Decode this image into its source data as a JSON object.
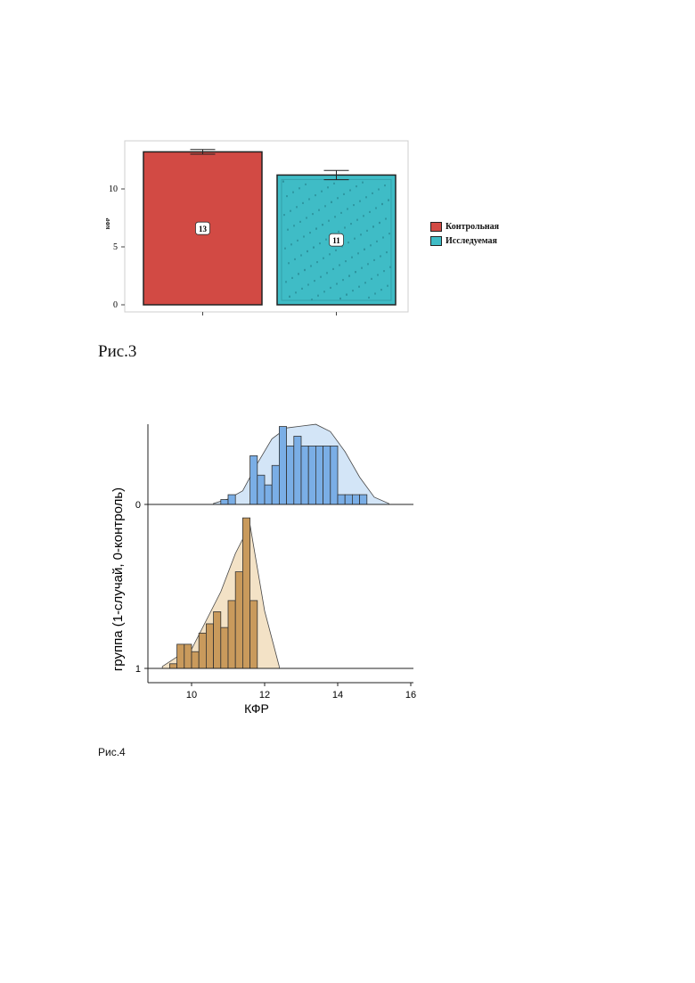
{
  "figure3": {
    "caption": "Рис.3",
    "chart_data": {
      "type": "bar",
      "ylabel": "КФР",
      "ylim": [
        0,
        13.8
      ],
      "yticks": [
        0,
        5,
        10
      ],
      "categories": [
        "Контрольная",
        "Исследуемая"
      ],
      "values": [
        13.2,
        11.2
      ],
      "error": [
        0.2,
        0.4
      ],
      "data_labels": [
        "13",
        "11"
      ],
      "colors": [
        "#d24a44",
        "#3fbcc6"
      ],
      "legend": [
        "Контрольная",
        "Исследуемая"
      ],
      "legend_position": "right",
      "grid": false
    }
  },
  "figure4": {
    "caption": "Рис.4",
    "chart_data": {
      "type": "area",
      "xlabel": "КФР",
      "ylabel": "группа (1-случай, 0-контроль)",
      "xlim": [
        8.8,
        16.2
      ],
      "xticks": [
        10,
        12,
        14,
        16
      ],
      "group_labels": [
        "0",
        "1"
      ],
      "series": [
        {
          "group": "0",
          "color": "#7aaee6",
          "density_color": "#cfe3f7",
          "hist_bins": [
            10.6,
            10.8,
            11.0,
            11.2,
            11.4,
            11.6,
            11.8,
            12.0,
            12.2,
            12.4,
            12.6,
            12.8,
            13.0,
            13.2,
            13.4,
            13.6,
            13.8,
            14.0,
            14.2,
            14.4,
            14.6,
            14.8,
            15.0,
            15.2,
            15.4
          ],
          "hist_counts": [
            0,
            0.5,
            1,
            0,
            0,
            5,
            3,
            2,
            4,
            8,
            6,
            7,
            6,
            6,
            6,
            6,
            6,
            1,
            1,
            1,
            1,
            0,
            0,
            0
          ],
          "density_x": [
            10.6,
            11.0,
            11.4,
            11.8,
            12.2,
            12.6,
            13.0,
            13.4,
            13.8,
            14.2,
            14.6,
            15.0,
            15.4
          ],
          "density_y": [
            0.1,
            0.6,
            1.5,
            4.5,
            7.2,
            8.4,
            8.6,
            8.8,
            8.0,
            5.8,
            3.0,
            0.8,
            0.1
          ]
        },
        {
          "group": "1",
          "color": "#c99a5c",
          "density_color": "#f2dfc0",
          "hist_bins": [
            9.4,
            9.6,
            9.8,
            10.0,
            10.2,
            10.4,
            10.6,
            10.8,
            11.0,
            11.2,
            11.4,
            11.6,
            11.8,
            12.0
          ],
          "hist_counts": [
            0.5,
            2.6,
            2.6,
            1.8,
            3.8,
            4.8,
            6.1,
            4.4,
            7.3,
            10.4,
            16.2,
            7.3,
            0
          ],
          "density_x": [
            9.2,
            9.6,
            10.0,
            10.4,
            10.8,
            11.2,
            11.6,
            12.0,
            12.4
          ],
          "density_y": [
            0.2,
            1.2,
            2.0,
            5.0,
            8.0,
            12.0,
            15.0,
            6.0,
            0.2
          ]
        }
      ]
    }
  }
}
